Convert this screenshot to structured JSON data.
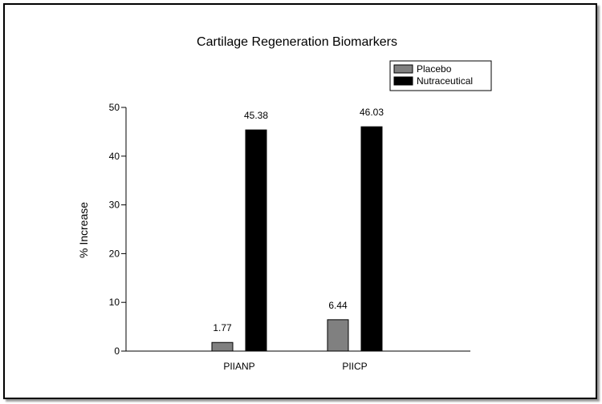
{
  "chart_data": {
    "type": "bar",
    "title": "Cartilage Regeneration Biomarkers",
    "xlabel": "",
    "ylabel": "% Increase",
    "categories": [
      "PIIANP",
      "PIICP"
    ],
    "series": [
      {
        "name": "Placebo",
        "values": [
          1.77,
          6.44
        ],
        "color": "#808080",
        "labels": [
          "1.77",
          "6.44"
        ]
      },
      {
        "name": "Nutraceutical",
        "values": [
          45.38,
          46.03
        ],
        "color": "#000000",
        "labels": [
          "45.38",
          "46.03"
        ]
      }
    ],
    "ylim": [
      0,
      50
    ],
    "yticks": [
      0,
      10,
      20,
      30,
      40,
      50
    ],
    "grid": false,
    "legend_position": "top-right"
  }
}
